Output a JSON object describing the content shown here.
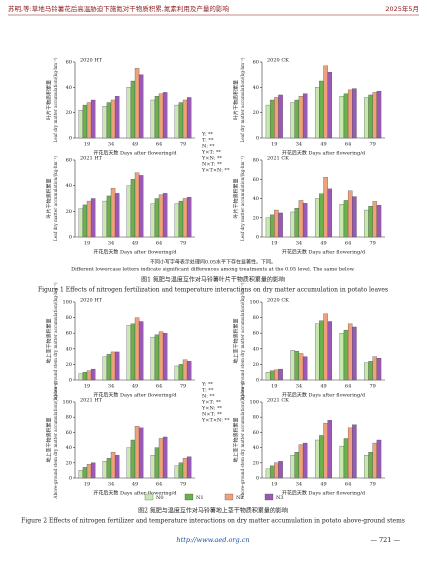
{
  "header": {
    "title": "苏明,等:草地马铃薯花后高温胁迫下施氮对干物质积累,氮素利用及产量的影响",
    "date": "2025年5月"
  },
  "figure1": {
    "stats": [
      "Y: **",
      "T: **",
      "N: **",
      "Y×T: **",
      "Y×N: **",
      "N×T: **",
      "Y×T×N: **"
    ],
    "note_cn": "不同小写字母表示处理间0.05水平下存在显著性。下同。",
    "note_en": "Different lowercase letters indicate significant differences among treatments at the 0.05 level. The same below.",
    "caption_cn": "图1 氮肥与温度互作对马铃薯叶片干物质积累量的影响",
    "caption_en": "Figure 1 Effects of nitrogen fertilization and temperature interactions on dry matter accumulation in potato leaves"
  },
  "figure2": {
    "stats": [
      "Y: **",
      "T: **",
      "N: **",
      "Y×T: **",
      "Y×N: **",
      "N×T: **",
      "Y×T×N: **"
    ],
    "caption_cn": "图2 氮肥与温度互作对马铃薯地上茎干物质积累量的影响",
    "caption_en": "Figure 2 Effects of nitrogen fertilizer and temperature interactions on dry matter accumulation in potato above-ground stems"
  },
  "footer": {
    "url": "http://www.aed.org.cn",
    "page": "— 721 —"
  },
  "chart_data": [
    {
      "type": "bar",
      "title": "2020 HT",
      "y_label_cn": "叶片干物质积累量",
      "y_label_en": "Leaf dry matter accumulation/(kg·hm⁻²)",
      "x_label": "开花后天数 Days after flowering/d",
      "categories": [
        "19",
        "34",
        "49",
        "64",
        "79"
      ],
      "ylim": [
        0,
        60
      ],
      "yticks": [
        0,
        20,
        40,
        60
      ],
      "series": [
        {
          "name": "N0",
          "color": "#c9e7b0",
          "values": [
            22,
            25,
            40,
            30,
            26
          ]
        },
        {
          "name": "N1",
          "color": "#6ab04c",
          "values": [
            26,
            28,
            45,
            33,
            28
          ]
        },
        {
          "name": "N2",
          "color": "#f0a07a",
          "values": [
            28,
            30,
            55,
            35,
            30
          ]
        },
        {
          "name": "N3",
          "color": "#9b59b6",
          "values": [
            30,
            33,
            50,
            36,
            32
          ]
        }
      ]
    },
    {
      "type": "bar",
      "title": "2020 CK",
      "y_label_cn": "叶片干物质积累量",
      "y_label_en": "Leaf dry matter accumulation/(kg·hm⁻²)",
      "x_label": "开花后天数 Days after flowering/d",
      "categories": [
        "19",
        "34",
        "49",
        "64",
        "79"
      ],
      "ylim": [
        0,
        60
      ],
      "yticks": [
        0,
        20,
        40,
        60
      ],
      "series": [
        {
          "name": "N0",
          "color": "#c9e7b0",
          "values": [
            26,
            28,
            40,
            33,
            32
          ]
        },
        {
          "name": "N1",
          "color": "#6ab04c",
          "values": [
            30,
            30,
            45,
            35,
            34
          ]
        },
        {
          "name": "N2",
          "color": "#f0a07a",
          "values": [
            32,
            33,
            57,
            38,
            36
          ]
        },
        {
          "name": "N3",
          "color": "#9b59b6",
          "values": [
            34,
            35,
            52,
            39,
            37
          ]
        }
      ]
    },
    {
      "type": "bar",
      "title": "2021 HT",
      "y_label_cn": "叶片干物质积累量",
      "y_label_en": "Leaf dry matter accumulation/(kg·hm⁻²)",
      "x_label": "开花后天数 Days after flowering/d",
      "categories": [
        "19",
        "34",
        "49",
        "64",
        "79"
      ],
      "ylim": [
        0,
        60
      ],
      "yticks": [
        0,
        20,
        40,
        60
      ],
      "series": [
        {
          "name": "N0",
          "color": "#c9e7b0",
          "values": [
            22,
            28,
            40,
            26,
            26
          ]
        },
        {
          "name": "N1",
          "color": "#6ab04c",
          "values": [
            25,
            32,
            45,
            30,
            28
          ]
        },
        {
          "name": "N2",
          "color": "#f0a07a",
          "values": [
            28,
            38,
            50,
            33,
            30
          ]
        },
        {
          "name": "N3",
          "color": "#9b59b6",
          "values": [
            30,
            34,
            48,
            34,
            31
          ]
        }
      ]
    },
    {
      "type": "bar",
      "title": "2021 CK",
      "y_label_cn": "叶片干物质积累量",
      "y_label_en": "Leaf dry matter accumulation/(kg·hm⁻²)",
      "x_label": "开花后天数 Days after flowering/d",
      "categories": [
        "19",
        "34",
        "49",
        "64",
        "79"
      ],
      "ylim": [
        0,
        80
      ],
      "yticks": [
        0,
        20,
        40,
        60,
        80
      ],
      "series": [
        {
          "name": "N0",
          "color": "#c9e7b0",
          "values": [
            20,
            26,
            40,
            34,
            28
          ]
        },
        {
          "name": "N1",
          "color": "#6ab04c",
          "values": [
            23,
            30,
            45,
            38,
            32
          ]
        },
        {
          "name": "N2",
          "color": "#f0a07a",
          "values": [
            28,
            38,
            62,
            48,
            37
          ]
        },
        {
          "name": "N3",
          "color": "#9b59b6",
          "values": [
            25,
            35,
            50,
            42,
            33
          ]
        }
      ]
    },
    {
      "type": "bar",
      "title": "2020 HT",
      "y_label_cn": "地上茎干物质积累量",
      "y_label_en": "Above-ground stem dry matter accumulation/(kg·hm⁻²)",
      "x_label": "开花后天数 Days after flowering/d",
      "categories": [
        "19",
        "34",
        "49",
        "64",
        "79"
      ],
      "ylim": [
        0,
        100
      ],
      "yticks": [
        0,
        20,
        40,
        60,
        80,
        100
      ],
      "series": [
        {
          "name": "N0",
          "color": "#c9e7b0",
          "values": [
            8,
            30,
            70,
            55,
            18
          ]
        },
        {
          "name": "N1",
          "color": "#6ab04c",
          "values": [
            10,
            33,
            72,
            58,
            20
          ]
        },
        {
          "name": "N2",
          "color": "#f0a07a",
          "values": [
            12,
            36,
            80,
            62,
            26
          ]
        },
        {
          "name": "N3",
          "color": "#9b59b6",
          "values": [
            14,
            36,
            75,
            60,
            24
          ]
        }
      ]
    },
    {
      "type": "bar",
      "title": "2020 CK",
      "y_label_cn": "地上茎干物质积累量",
      "y_label_en": "Above-ground stem dry matter accumulation/(kg·hm⁻²)",
      "x_label": "开花后天数 Days after flowering/d",
      "categories": [
        "19",
        "34",
        "49",
        "64",
        "79"
      ],
      "ylim": [
        0,
        100
      ],
      "yticks": [
        0,
        20,
        40,
        60,
        80,
        100
      ],
      "series": [
        {
          "name": "N0",
          "color": "#c9e7b0",
          "values": [
            10,
            38,
            72,
            60,
            22
          ]
        },
        {
          "name": "N1",
          "color": "#6ab04c",
          "values": [
            12,
            37,
            76,
            64,
            24
          ]
        },
        {
          "name": "N2",
          "color": "#f0a07a",
          "values": [
            13,
            34,
            85,
            72,
            30
          ]
        },
        {
          "name": "N3",
          "color": "#9b59b6",
          "values": [
            14,
            30,
            75,
            68,
            28
          ]
        }
      ]
    },
    {
      "type": "bar",
      "title": "2021 HT",
      "y_label_cn": "地上茎干物质积累量",
      "y_label_en": "Above-ground stem dry matter accumulation/(kg·hm⁻²)",
      "x_label": "开花后天数 Days after flowering/d",
      "categories": [
        "19",
        "34",
        "49",
        "64",
        "79"
      ],
      "ylim": [
        0,
        100
      ],
      "yticks": [
        0,
        20,
        40,
        60,
        80,
        100
      ],
      "series": [
        {
          "name": "N0",
          "color": "#c9e7b0",
          "values": [
            10,
            22,
            40,
            30,
            16
          ]
        },
        {
          "name": "N1",
          "color": "#6ab04c",
          "values": [
            14,
            26,
            50,
            40,
            20
          ]
        },
        {
          "name": "N2",
          "color": "#f0a07a",
          "values": [
            18,
            34,
            68,
            52,
            26
          ]
        },
        {
          "name": "N3",
          "color": "#9b59b6",
          "values": [
            20,
            30,
            66,
            54,
            28
          ]
        }
      ]
    },
    {
      "type": "bar",
      "title": "2021 CK",
      "y_label_cn": "地上茎干物质积累量",
      "y_label_en": "Above-ground stem dry matter accumulation/(kg·hm⁻²)",
      "x_label": "开花后天数 Days after flowering/d",
      "categories": [
        "19",
        "34",
        "49",
        "64",
        "79"
      ],
      "ylim": [
        0,
        100
      ],
      "yticks": [
        0,
        20,
        40,
        60,
        80,
        100
      ],
      "series": [
        {
          "name": "N0",
          "color": "#c9e7b0",
          "values": [
            12,
            30,
            50,
            42,
            30
          ]
        },
        {
          "name": "N1",
          "color": "#6ab04c",
          "values": [
            16,
            34,
            56,
            52,
            34
          ]
        },
        {
          "name": "N2",
          "color": "#f0a07a",
          "values": [
            20,
            44,
            72,
            66,
            46
          ]
        },
        {
          "name": "N3",
          "color": "#9b59b6",
          "values": [
            22,
            46,
            76,
            70,
            50
          ]
        }
      ]
    }
  ]
}
